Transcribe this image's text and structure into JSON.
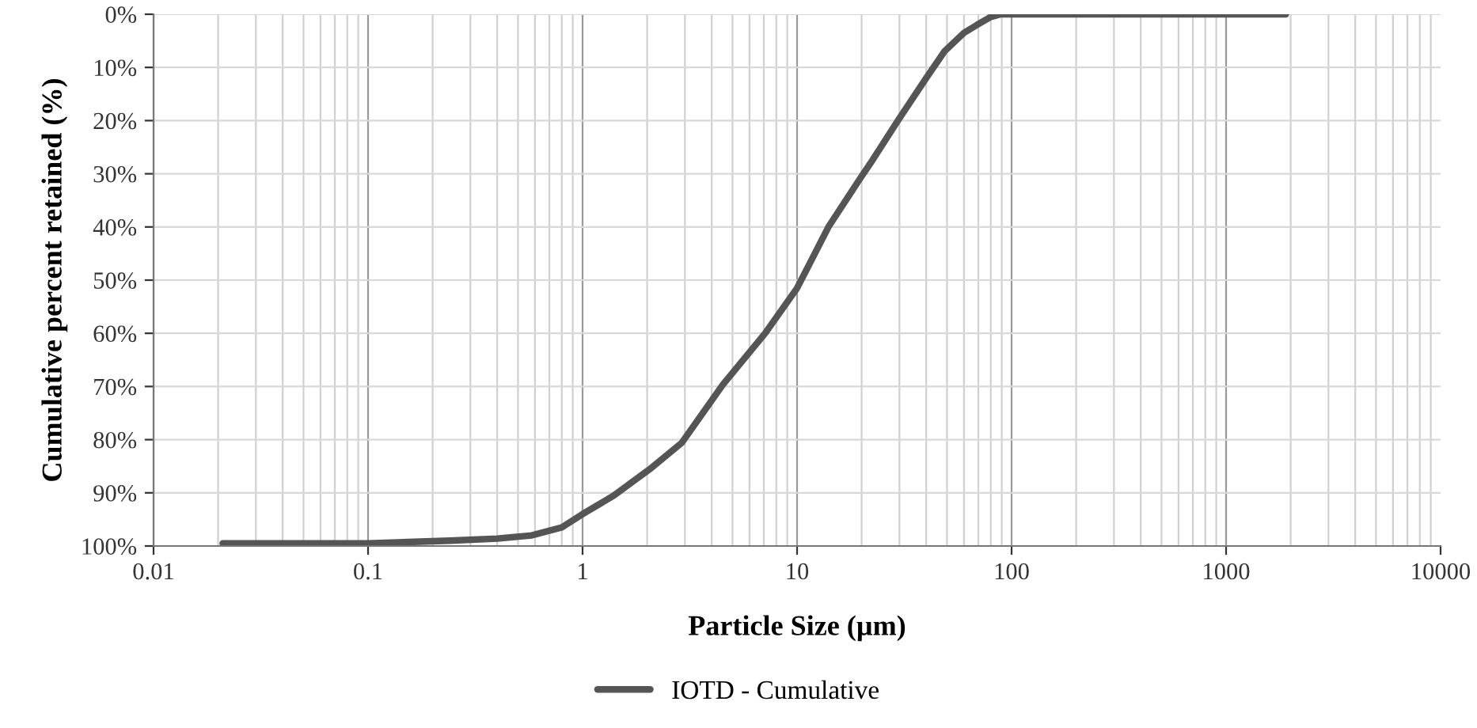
{
  "chart_data": {
    "type": "line",
    "xlabel": "Particle Size (µm)",
    "ylabel": "Cumulative percent retained (%)",
    "series": [
      {
        "name": "IOTD - Cumulative",
        "color": "#555555",
        "x": [
          0.021,
          0.1,
          0.24,
          0.4,
          0.58,
          0.8,
          1.0,
          1.4,
          2.05,
          2.9,
          4.5,
          7.1,
          10,
          14,
          19.6,
          22,
          29.5,
          40,
          48.6,
          60,
          69,
          80,
          89,
          200,
          1900
        ],
        "values": [
          99.5,
          99.5,
          99,
          98.6,
          98,
          96.5,
          94,
          90.5,
          85.6,
          80.6,
          69.7,
          60,
          51.5,
          40,
          31,
          28,
          20,
          12,
          7,
          3.5,
          2,
          0.5,
          0,
          0,
          0
        ]
      }
    ],
    "log": "x",
    "xlim": [
      0.01,
      10000
    ],
    "xticks": [
      {
        "value": 0.01,
        "label": "0.01"
      },
      {
        "value": 0.1,
        "label": "0.1"
      },
      1,
      10,
      100,
      1000,
      10000
    ],
    "ylim": [
      100,
      0
    ],
    "yticks": [
      {
        "value": 0,
        "label": "0%"
      },
      {
        "value": 10,
        "label": "10%"
      },
      {
        "value": 20,
        "label": "20%"
      },
      {
        "value": 30,
        "label": "30%"
      },
      {
        "value": 40,
        "label": "40%"
      },
      {
        "value": 50,
        "label": "50%"
      },
      {
        "value": 60,
        "label": "60%"
      },
      {
        "value": 70,
        "label": "70%"
      },
      {
        "value": 80,
        "label": "80%"
      },
      {
        "value": 90,
        "label": "90%"
      },
      {
        "value": 100,
        "label": "100%"
      }
    ],
    "grid": true,
    "legend": "bottom",
    "line_style": "solid",
    "marker": "none"
  }
}
